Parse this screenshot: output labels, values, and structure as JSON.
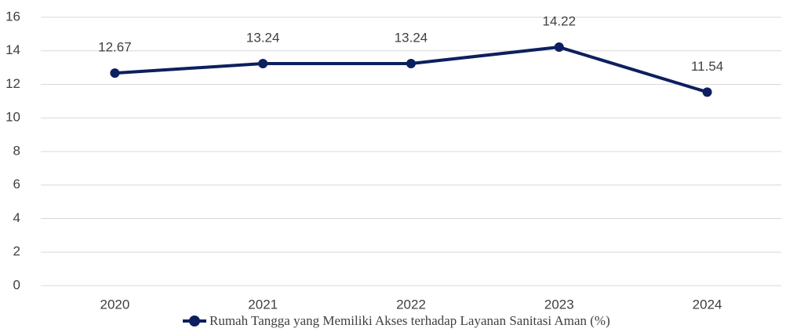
{
  "chart_data": {
    "type": "line",
    "categories": [
      "2020",
      "2021",
      "2022",
      "2023",
      "2024"
    ],
    "series": [
      {
        "name": "Rumah Tangga yang Memiliki Akses terhadap Layanan Sanitasi Aman (%)",
        "color": "#0d1f5e",
        "values": [
          12.67,
          13.24,
          13.24,
          14.22,
          11.54
        ]
      }
    ],
    "ylim": [
      0,
      16
    ],
    "yticks": [
      0,
      2,
      4,
      6,
      8,
      10,
      12,
      14,
      16
    ],
    "grid": true,
    "legend": "bottom"
  }
}
